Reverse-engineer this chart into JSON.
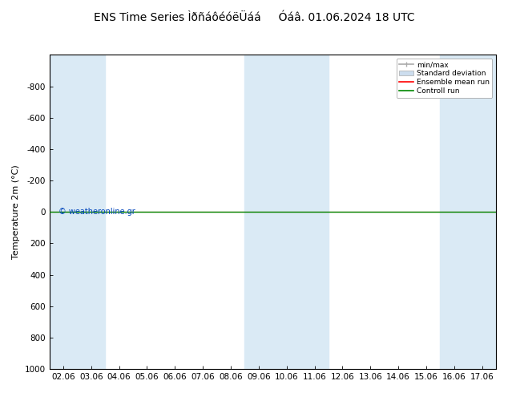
{
  "title": "ENS Time Series ÌðñáôéóëÜáá     Óáâ. 01.06.2024 18 UTC",
  "ylabel": "Temperature 2m (°C)",
  "ylim_bottom": 1000,
  "ylim_top": -1000,
  "yticks": [
    -800,
    -600,
    -400,
    -200,
    0,
    200,
    400,
    600,
    800,
    1000
  ],
  "xtick_labels": [
    "02.06",
    "03.06",
    "04.06",
    "05.06",
    "06.06",
    "07.06",
    "08.06",
    "09.06",
    "10.06",
    "11.06",
    "12.06",
    "13.06",
    "14.06",
    "15.06",
    "16.06",
    "17.06"
  ],
  "xtick_values": [
    0,
    1,
    2,
    3,
    4,
    5,
    6,
    7,
    8,
    9,
    10,
    11,
    12,
    13,
    14,
    15
  ],
  "xlim": [
    -0.5,
    15.5
  ],
  "shaded_cols": [
    0,
    1,
    7,
    8,
    9,
    14,
    15
  ],
  "shade_color": "#daeaf5",
  "bg_color": "#ffffff",
  "plot_bg_color": "#ffffff",
  "control_run_y": 0,
  "control_run_color": "#008800",
  "ensemble_mean_color": "#ff0000",
  "watermark": "© weatheronline.gr",
  "watermark_color": "#0044bb",
  "title_fontsize": 10,
  "axis_fontsize": 8,
  "tick_fontsize": 7.5
}
